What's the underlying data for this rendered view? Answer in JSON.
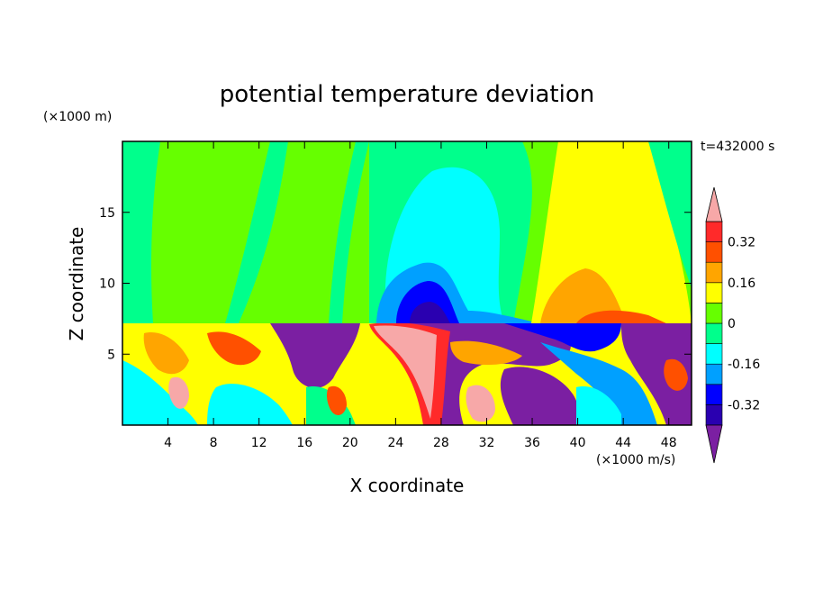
{
  "chart_data": {
    "type": "heatmap",
    "title": "potential temperature deviation",
    "xlabel": "X coordinate",
    "ylabel": "Z coordinate",
    "x_unit": "(×1000 m/s)",
    "y_unit": "(×1000 m)",
    "time_label": "t=432000 s",
    "xlim": [
      0,
      50
    ],
    "ylim": [
      0,
      20
    ],
    "x_ticks": [
      4,
      8,
      12,
      16,
      20,
      24,
      28,
      32,
      36,
      40,
      44,
      48
    ],
    "y_ticks": [
      5,
      10,
      15
    ],
    "colorbar": {
      "levels": [
        -0.4,
        -0.32,
        -0.24,
        -0.16,
        -0.08,
        0,
        0.08,
        0.16,
        0.24,
        0.32,
        0.4
      ],
      "tick_labels": [
        "0.32",
        "0.16",
        "0",
        "-0.16",
        "-0.32"
      ],
      "tick_values": [
        0.32,
        0.16,
        0,
        -0.16,
        -0.32
      ],
      "colors": [
        "#7b1fa2",
        "#2a00b0",
        "#0000ff",
        "#00a0ff",
        "#00ffff",
        "#00ff8c",
        "#66ff00",
        "#ffff00",
        "#ffa500",
        "#ff5000",
        "#ff2a2a",
        "#f7a8a8"
      ]
    }
  }
}
